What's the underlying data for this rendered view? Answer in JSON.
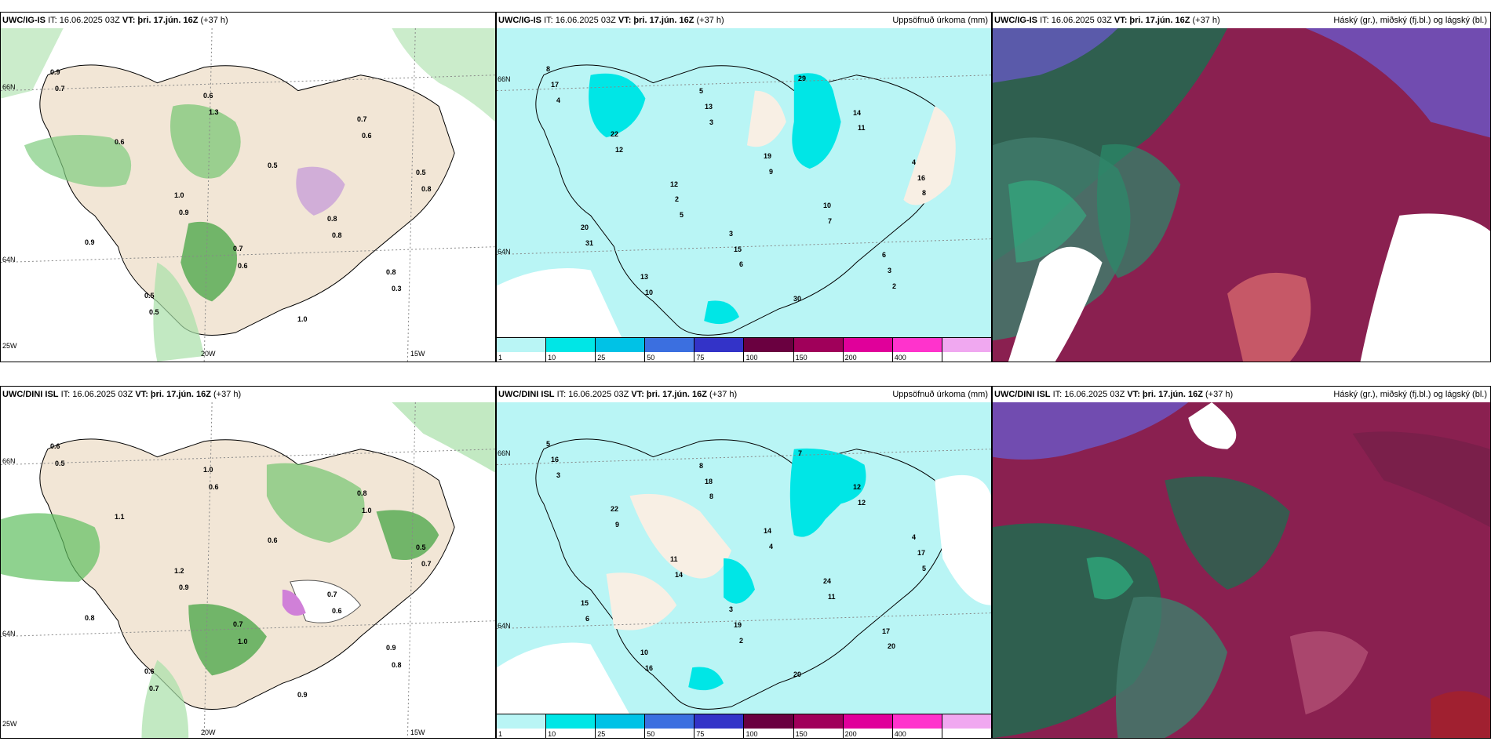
{
  "panels": {
    "p1": {
      "model": "UWC/IG-IS",
      "it": "IT: 16.06.2025 03Z",
      "vt_label": "VT:",
      "vt": "þri. 17.jún. 16Z",
      "lead": "(+37 h)",
      "right_title": "",
      "lat_labels": [
        "66N",
        "64N"
      ],
      "lon_labels": [
        "25W",
        "20W",
        "15W"
      ],
      "values": [
        "0.9",
        "0.7",
        "0.5",
        "0.6",
        "0.8",
        "1.0",
        "0.7",
        "0.5",
        "0.8",
        "0.6",
        "1.0",
        "0.9",
        "0.5",
        "0.7",
        "0.6",
        "0.8",
        "1.3",
        "0.3",
        "0.9",
        "0.6",
        "0.5",
        "0.8"
      ]
    },
    "p2": {
      "model": "UWC/IG-IS",
      "it": "IT: 16.06.2025 03Z",
      "vt_label": "VT:",
      "vt": "þri. 17.jún. 16Z",
      "lead": "(+37 h)",
      "right_title": "Uppsöfnuð úrkoma (mm)",
      "lat_labels": [
        "66N",
        "64N"
      ],
      "values": [
        "8",
        "3",
        "4",
        "5",
        "6",
        "12",
        "14",
        "13",
        "10",
        "22",
        "30",
        "20",
        "19",
        "17",
        "15",
        "16",
        "13",
        "3",
        "2",
        "11",
        "10",
        "7",
        "12",
        "29",
        "31",
        "9",
        "4",
        "6",
        "8",
        "3",
        "2",
        "5"
      ]
    },
    "p3": {
      "model": "UWC/IG-IS",
      "it": "IT: 16.06.2025 03Z",
      "vt_label": "VT:",
      "vt": "þri. 17.jún. 16Z",
      "lead": "(+37 h)",
      "right_title": "Háský (gr.), miðský (fj.bl.) og lágský (bl.)"
    },
    "p4": {
      "model": "UWC/DINI ISL",
      "it": "IT: 16.06.2025 03Z",
      "vt_label": "VT:",
      "vt": "þri. 17.jún. 16Z",
      "lead": "(+37 h)",
      "right_title": "",
      "lat_labels": [
        "66N",
        "64N"
      ],
      "lon_labels": [
        "25W",
        "20W",
        "15W"
      ],
      "values": [
        "0.6",
        "0.7",
        "0.5",
        "1.0",
        "0.9",
        "1.2",
        "0.8",
        "0.6",
        "0.7",
        "1.1",
        "0.9",
        "0.8",
        "0.6",
        "0.5",
        "1.0",
        "0.7",
        "0.6",
        "0.8",
        "0.9",
        "1.0",
        "0.7",
        "0.6"
      ]
    },
    "p5": {
      "model": "UWC/DINI ISL",
      "it": "IT: 16.06.2025 03Z",
      "vt_label": "VT:",
      "vt": "þri. 17.jún. 16Z",
      "lead": "(+37 h)",
      "right_title": "Uppsöfnuð úrkoma (mm)",
      "lat_labels": [
        "66N",
        "64N"
      ],
      "values": [
        "5",
        "3",
        "4",
        "8",
        "17",
        "11",
        "12",
        "10",
        "24",
        "22",
        "20",
        "15",
        "14",
        "16",
        "19",
        "17",
        "18",
        "20",
        "14",
        "12",
        "16",
        "11",
        "9",
        "7",
        "6",
        "4",
        "3",
        "2",
        "5",
        "8"
      ]
    },
    "p6": {
      "model": "UWC/DINI ISL",
      "it": "IT: 16.06.2025 03Z",
      "vt_label": "VT:",
      "vt": "þri. 17.jún. 16Z",
      "lead": "(+37 h)",
      "right_title": "Háský (gr.), miðský (fj.bl.) og lágský (bl.)"
    }
  },
  "legend": {
    "labels": [
      "1",
      "10",
      "25",
      "50",
      "75",
      "100",
      "150",
      "200",
      "400",
      ""
    ],
    "colors": [
      "#b9f5f5",
      "#00e6e6",
      "#00c2e6",
      "#3b6fe0",
      "#3333c8",
      "#6a0040",
      "#a0005a",
      "#e0009a",
      "#ff33cc",
      "#f0a8f0"
    ]
  }
}
